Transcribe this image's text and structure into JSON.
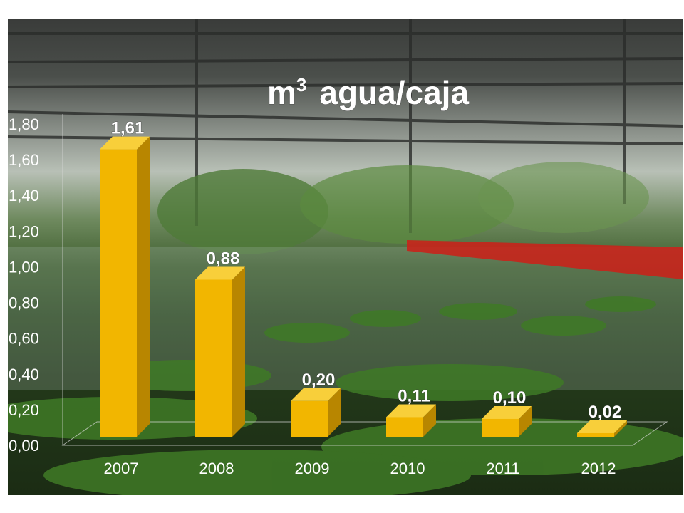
{
  "chart_data": {
    "type": "bar",
    "title": "m",
    "title_superscript": "3",
    "title_rest": "agua/caja",
    "categories": [
      "2007",
      "2008",
      "2009",
      "2010",
      "2011",
      "2012"
    ],
    "values": [
      1.61,
      0.88,
      0.2,
      0.11,
      0.1,
      0.02
    ],
    "data_labels": [
      "1,61",
      "0,88",
      "0,20",
      "0,11",
      "0,10",
      "0,02"
    ],
    "y_ticks": [
      "0,00",
      "0,20",
      "0,40",
      "0,60",
      "0,80",
      "1,00",
      "1,20",
      "1,40",
      "1,60",
      "1,80"
    ],
    "ylim": [
      0,
      1.8
    ],
    "grid": false,
    "bar_color": "#f2b600",
    "bar_side_color": "#b88600",
    "bar_top_color": "#f8cf3a",
    "background": "photo of bananas being washed in water tanks"
  }
}
